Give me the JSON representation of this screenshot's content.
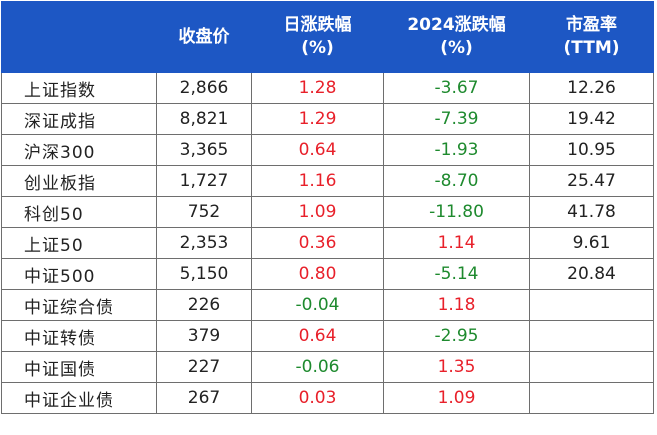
{
  "headers": [
    {
      "line1": "",
      "line2": ""
    },
    {
      "line1": "收盘价",
      "line2": ""
    },
    {
      "line1": "日涨跌幅",
      "line2": "(%)"
    },
    {
      "line1": "2024涨跌幅",
      "line2": "(%)"
    },
    {
      "line1": "市盈率",
      "line2": "(TTM)"
    }
  ],
  "rows": [
    {
      "name": "上证指数",
      "close": "2,866",
      "daily": "1.28",
      "ytd": "-3.67",
      "pe": "12.26"
    },
    {
      "name": "深证成指",
      "close": "8,821",
      "daily": "1.29",
      "ytd": "-7.39",
      "pe": "19.42"
    },
    {
      "name": "沪深300",
      "close": "3,365",
      "daily": "0.64",
      "ytd": "-1.93",
      "pe": "10.95"
    },
    {
      "name": "创业板指",
      "close": "1,727",
      "daily": "1.16",
      "ytd": "-8.70",
      "pe": "25.47"
    },
    {
      "name": "科创50",
      "close": "752",
      "daily": "1.09",
      "ytd": "-11.80",
      "pe": "41.78"
    },
    {
      "name": "上证50",
      "close": "2,353",
      "daily": "0.36",
      "ytd": "1.14",
      "pe": "9.61"
    },
    {
      "name": "中证500",
      "close": "5,150",
      "daily": "0.80",
      "ytd": "-5.14",
      "pe": "20.84"
    },
    {
      "name": "中证综合债",
      "close": "226",
      "daily": "-0.04",
      "ytd": "1.18",
      "pe": ""
    },
    {
      "name": "中证转债",
      "close": "379",
      "daily": "0.64",
      "ytd": "-2.95",
      "pe": ""
    },
    {
      "name": "中证国债",
      "close": "227",
      "daily": "-0.06",
      "ytd": "1.35",
      "pe": ""
    },
    {
      "name": "中证企业债",
      "close": "267",
      "daily": "0.03",
      "ytd": "1.09",
      "pe": ""
    }
  ],
  "colors": {
    "header_bg": "#1d57c4",
    "header_text": "#ffffff",
    "positive": "#e8202a",
    "negative": "#1e8a2e",
    "border": "#6e6e6e"
  }
}
